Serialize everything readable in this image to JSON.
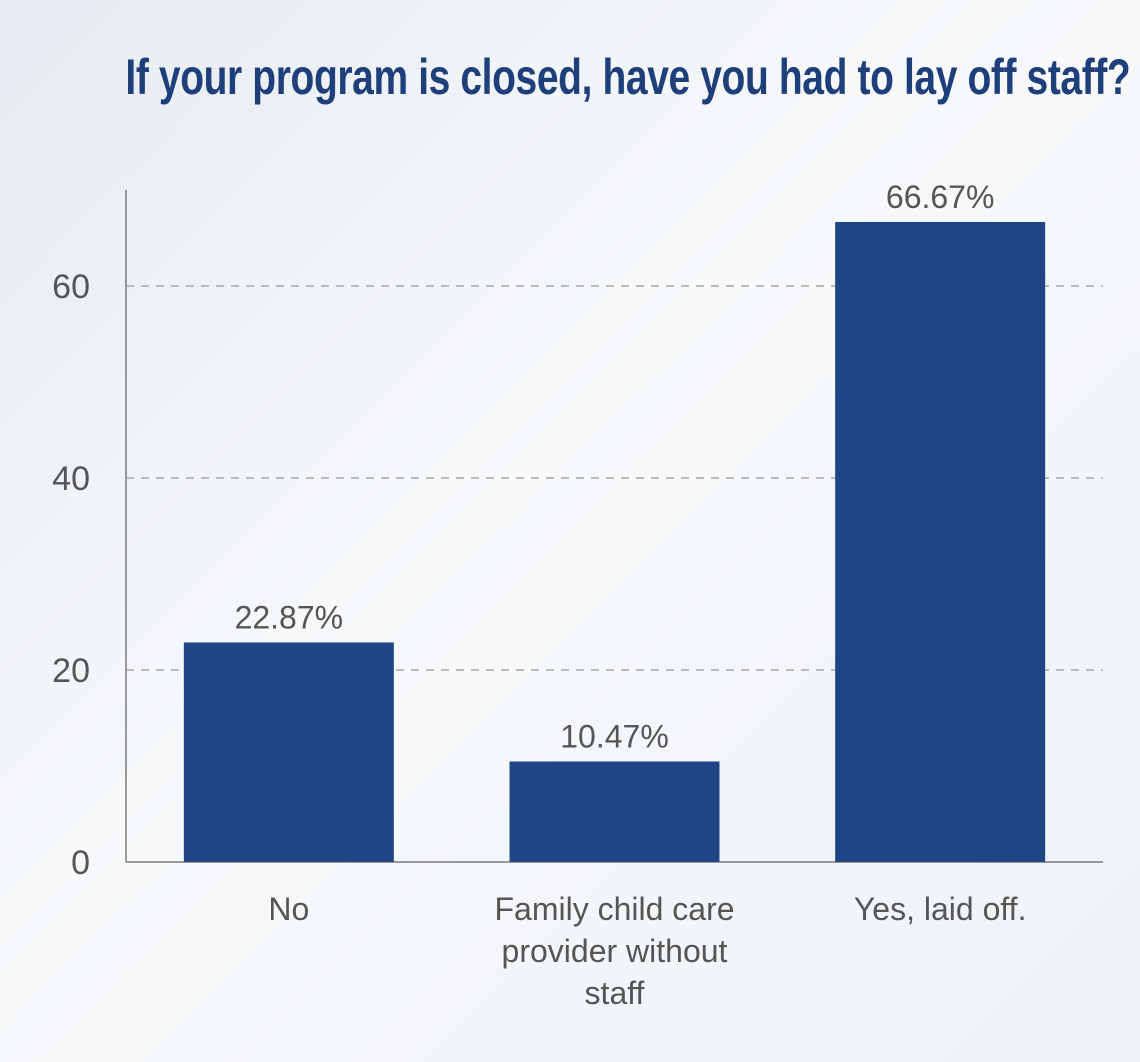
{
  "chart_data": {
    "type": "bar",
    "title": "If your program is closed, have you had to lay off staff?",
    "categories": [
      "No",
      "Family child care provider without staff",
      "Yes, laid off."
    ],
    "category_lines": [
      [
        "No"
      ],
      [
        "Family child care",
        "provider without",
        "staff"
      ],
      [
        "Yes, laid off."
      ]
    ],
    "values": [
      22.87,
      10.47,
      66.67
    ],
    "data_labels": [
      "22.87%",
      "10.47%",
      "66.67%"
    ],
    "ylim": [
      0,
      70
    ],
    "yticks": [
      0,
      20,
      40,
      60
    ],
    "grid": "horizontal dashed",
    "xlabel": "",
    "ylabel": "",
    "colors": {
      "bar": "#1f4585",
      "title": "#1f3f7a",
      "text": "#555555",
      "grid": "#bbbbbb"
    }
  }
}
